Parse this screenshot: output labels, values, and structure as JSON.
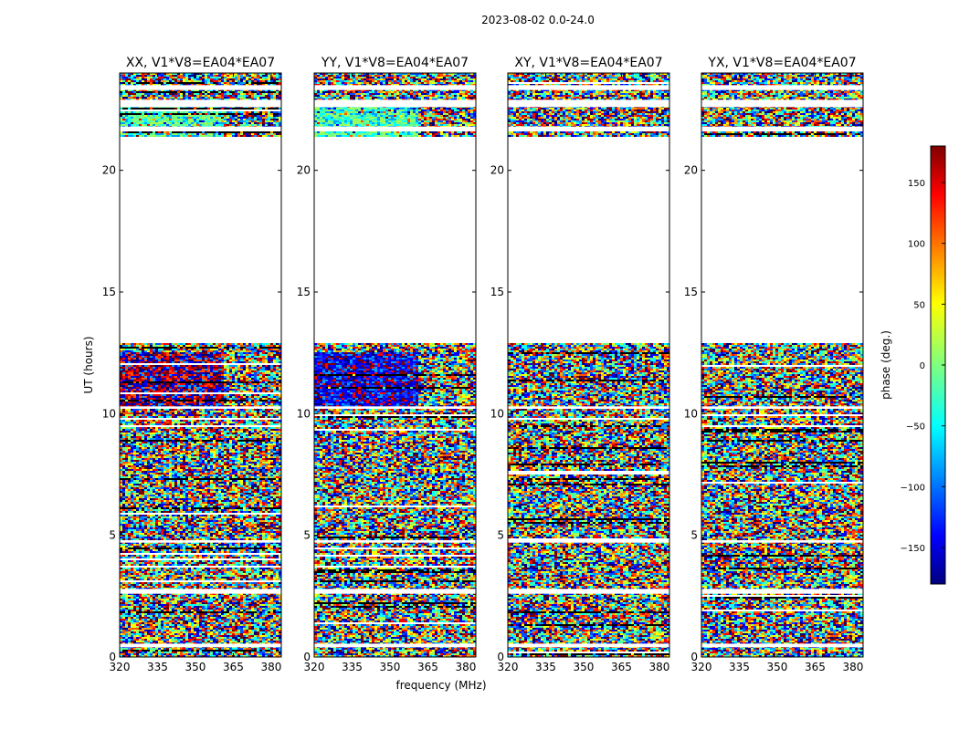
{
  "chart_data": {
    "type": "heatmap",
    "title": "2023-08-02 0.0-24.0",
    "xlabel": "frequency (MHz)",
    "ylabel": "UT (hours)",
    "xlim": [
      320,
      384
    ],
    "ylim": [
      0,
      24
    ],
    "xticks": [
      "320",
      "335",
      "350",
      "365",
      "380"
    ],
    "yticks": [
      "0",
      "5",
      "10",
      "15",
      "20"
    ],
    "colorbar": {
      "label": "phase (deg.)",
      "range": [
        -180,
        180
      ],
      "ticks": [
        "150",
        "100",
        "50",
        "0",
        "−50",
        "−100",
        "−150"
      ],
      "tick_values": [
        150,
        100,
        50,
        0,
        -50,
        -100,
        -150
      ],
      "colormap": [
        "#00007f",
        "#0000ff",
        "#007fff",
        "#00ffff",
        "#7fff7f",
        "#ffff00",
        "#ff7f00",
        "#ff0000",
        "#7f0000"
      ]
    },
    "panels": [
      {
        "title": "XX, V1*V8=EA04*EA07",
        "pol": "XX"
      },
      {
        "title": "YY, V1*V8=EA04*EA07",
        "pol": "YY"
      },
      {
        "title": "XY, V1*V8=EA04*EA07",
        "pol": "XY"
      },
      {
        "title": "YX, V1*V8=EA04*EA07",
        "pol": "YX"
      }
    ],
    "data_coverage_hours": [
      [
        0,
        12.9
      ],
      [
        21.4,
        24
      ]
    ],
    "gap_hours": [
      12.9,
      21.4
    ]
  }
}
